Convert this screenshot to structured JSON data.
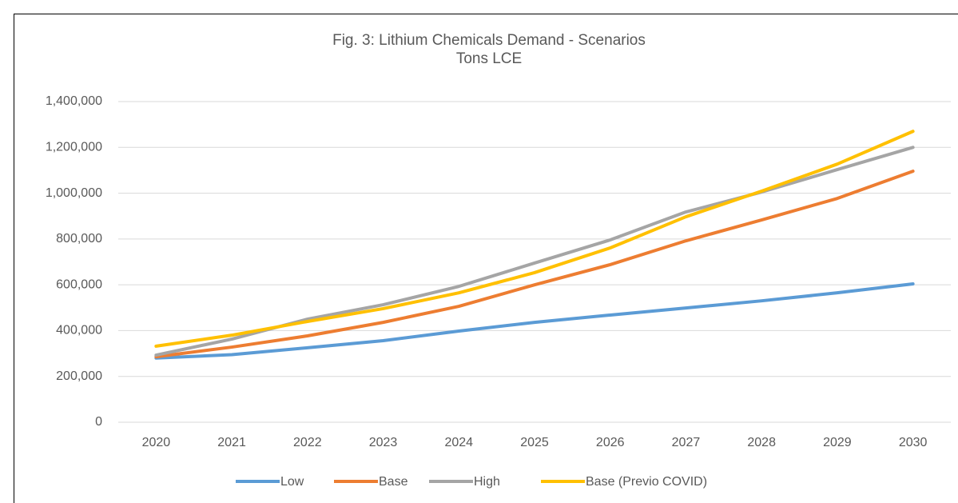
{
  "chart_data": {
    "type": "line",
    "title": "Fig. 3: Lithium Chemicals Demand - Scenarios",
    "subtitle": "Tons LCE",
    "categories": [
      "2020",
      "2021",
      "2022",
      "2023",
      "2024",
      "2025",
      "2026",
      "2027",
      "2028",
      "2029",
      "2030"
    ],
    "series": [
      {
        "name": "Low",
        "color": "#5b9bd5",
        "values": [
          280000,
          295000,
          325000,
          356000,
          398000,
          436000,
          468000,
          499000,
          530000,
          565000,
          604000
        ]
      },
      {
        "name": "Base",
        "color": "#ed7d31",
        "values": [
          286000,
          328000,
          377000,
          436000,
          506000,
          600000,
          688000,
          792000,
          883000,
          977000,
          1096000
        ]
      },
      {
        "name": "High",
        "color": "#a5a5a5",
        "values": [
          293000,
          363000,
          450000,
          513000,
          593000,
          695000,
          796000,
          918000,
          1005000,
          1103000,
          1200000
        ]
      },
      {
        "name": "Base (Previo COVID)",
        "color": "#ffc000",
        "values": [
          332000,
          380000,
          440000,
          496000,
          565000,
          653000,
          761000,
          897000,
          1009000,
          1127000,
          1270000
        ]
      }
    ],
    "ylim": [
      0,
      1400000
    ],
    "yticks": [
      0,
      {
        "value": 200000,
        "label": "200,000"
      },
      {
        "value": 400000,
        "label": "400,000"
      },
      {
        "value": 600000,
        "label": "600,000"
      },
      {
        "value": 800000,
        "label": "800,000"
      },
      {
        "value": 1000000,
        "label": "1,000,000"
      },
      {
        "value": 1200000,
        "label": "1,200,000"
      },
      {
        "value": 1400000,
        "label": "1,400,000"
      }
    ],
    "grid": true,
    "legend": "bottom"
  }
}
